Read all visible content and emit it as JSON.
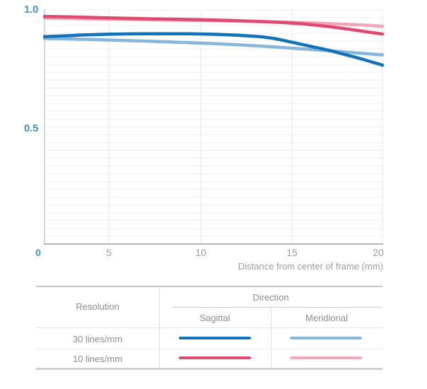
{
  "chart": {
    "y_tick_labels": [
      "1.0",
      "0.5"
    ],
    "x_tick_labels": [
      "0",
      "5",
      "10",
      "15",
      "20"
    ],
    "x_axis_title": "Distance from center of frame (mm)"
  },
  "chart_data": {
    "type": "line",
    "xlabel": "Distance from center of frame (mm)",
    "ylabel": "",
    "xlim": [
      0,
      20
    ],
    "ylim": [
      0,
      1.0
    ],
    "x_ticks": [
      0,
      5,
      10,
      15,
      20
    ],
    "y_ticks_labeled": [
      0,
      0.5,
      1.0
    ],
    "grid": "on",
    "legend_position": "table-below",
    "series": [
      {
        "name": "10 lines/mm Meridional",
        "color_key": "meridional_10",
        "points": [
          [
            0,
            0.965
          ],
          [
            3,
            0.962
          ],
          [
            6,
            0.959
          ],
          [
            9,
            0.956
          ],
          [
            12,
            0.952
          ],
          [
            14,
            0.949
          ],
          [
            16,
            0.945
          ],
          [
            17.5,
            0.94
          ],
          [
            19,
            0.935
          ],
          [
            20,
            0.93
          ]
        ]
      },
      {
        "name": "30 lines/mm Meridional",
        "color_key": "meridional_30",
        "points": [
          [
            0,
            0.878
          ],
          [
            2,
            0.876
          ],
          [
            4,
            0.873
          ],
          [
            6,
            0.869
          ],
          [
            8,
            0.864
          ],
          [
            10,
            0.858
          ],
          [
            12,
            0.851
          ],
          [
            14,
            0.842
          ],
          [
            16,
            0.831
          ],
          [
            17.5,
            0.823
          ],
          [
            19,
            0.814
          ],
          [
            20,
            0.808
          ]
        ]
      },
      {
        "name": "10 lines/mm Sagittal",
        "color_key": "sagittal_10",
        "points": [
          [
            0,
            0.972
          ],
          [
            2,
            0.97
          ],
          [
            4,
            0.967
          ],
          [
            6,
            0.964
          ],
          [
            8,
            0.961
          ],
          [
            10,
            0.958
          ],
          [
            12,
            0.954
          ],
          [
            14,
            0.948
          ],
          [
            15.5,
            0.941
          ],
          [
            17,
            0.929
          ],
          [
            18,
            0.919
          ],
          [
            19,
            0.908
          ],
          [
            20,
            0.897
          ]
        ]
      },
      {
        "name": "30 lines/mm Sagittal",
        "color_key": "sagittal_30",
        "points": [
          [
            0,
            0.886
          ],
          [
            1.5,
            0.889
          ],
          [
            3,
            0.893
          ],
          [
            5,
            0.896
          ],
          [
            7,
            0.898
          ],
          [
            9,
            0.898
          ],
          [
            11,
            0.895
          ],
          [
            13,
            0.887
          ],
          [
            14,
            0.878
          ],
          [
            15,
            0.862
          ],
          [
            16,
            0.845
          ],
          [
            17,
            0.828
          ],
          [
            18,
            0.808
          ],
          [
            19,
            0.787
          ],
          [
            20,
            0.764
          ]
        ]
      }
    ]
  },
  "colors": {
    "sagittal_30": "#1273b8",
    "meridional_30": "#87b6dc",
    "sagittal_10": "#df4a71",
    "meridional_10": "#f2a6b8",
    "axis_label_blue": "#4192cc",
    "tick_gray": "#9c9c9c"
  },
  "table": {
    "resolution_header": "Resolution",
    "direction_header": "Direction",
    "sagittal_header": "Sagittal",
    "meridional_header": "Meridional",
    "rows": [
      {
        "label": "30 lines/mm",
        "sagittal_key": "sagittal_30",
        "meridional_key": "meridional_30"
      },
      {
        "label": "10 lines/mm",
        "sagittal_key": "sagittal_10",
        "meridional_key": "meridional_10"
      }
    ]
  }
}
